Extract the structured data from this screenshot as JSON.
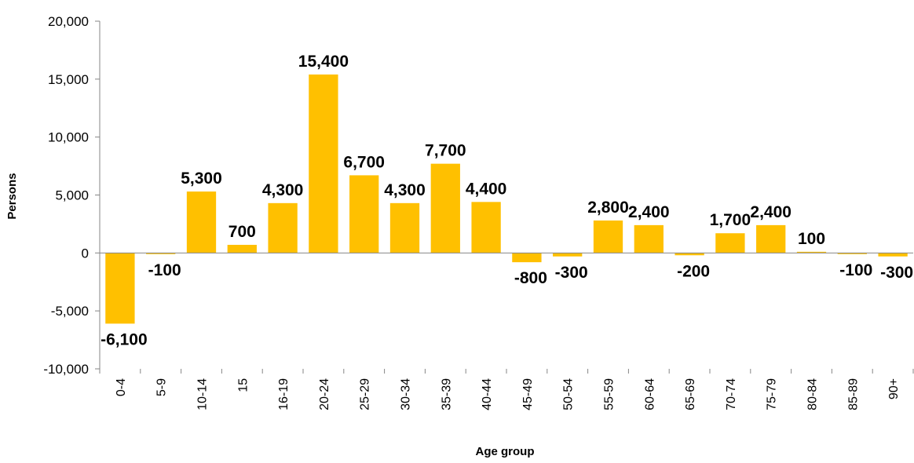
{
  "chart_data": {
    "type": "bar",
    "title": "",
    "xlabel": "Age group",
    "ylabel": "Persons",
    "categories": [
      "0-4",
      "5-9",
      "10-14",
      "15",
      "16-19",
      "20-24",
      "25-29",
      "30-34",
      "35-39",
      "40-44",
      "45-49",
      "50-54",
      "55-59",
      "60-64",
      "65-69",
      "70-74",
      "75-79",
      "80-84",
      "85-89",
      "90+"
    ],
    "values": [
      -6100,
      -100,
      5300,
      700,
      4300,
      15400,
      6700,
      4300,
      7700,
      4400,
      -800,
      -300,
      2800,
      2400,
      -200,
      1700,
      2400,
      100,
      -100,
      -300
    ],
    "data_labels": [
      "-6,100",
      "-100",
      "5,300",
      "700",
      "4,300",
      "15,400",
      "6,700",
      "4,300",
      "7,700",
      "4,400",
      "-800",
      "-300",
      "2,800",
      "2,400",
      "-200",
      "1,700",
      "2,400",
      "100",
      "-100",
      "-300"
    ],
    "y_ticks": [
      -10000,
      -5000,
      0,
      5000,
      10000,
      15000,
      20000
    ],
    "y_tick_labels": [
      "-10,000",
      "-5,000",
      "0",
      "5,000",
      "10,000",
      "15,000",
      "20,000"
    ],
    "ylim": [
      -10000,
      20000
    ],
    "grid": false,
    "legend": "none",
    "bar_color": "#FFC000"
  }
}
